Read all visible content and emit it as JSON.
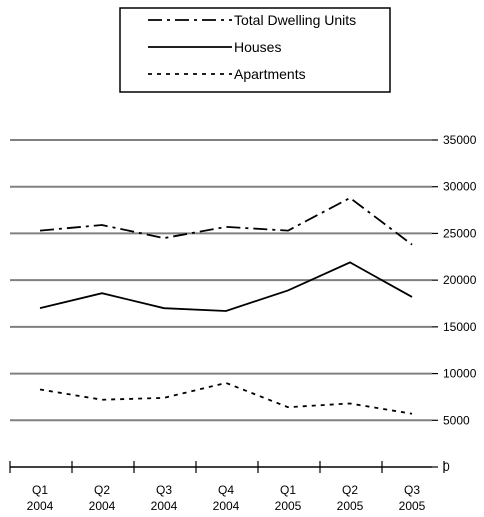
{
  "chart_data": {
    "type": "line",
    "title": "",
    "xlabel": "",
    "ylabel": "",
    "categories": [
      [
        "Q1",
        "2004"
      ],
      [
        "Q2",
        "2004"
      ],
      [
        "Q3",
        "2004"
      ],
      [
        "Q4",
        "2004"
      ],
      [
        "Q1",
        "2005"
      ],
      [
        "Q2",
        "2005"
      ],
      [
        "Q3",
        "2005"
      ]
    ],
    "y_axis_side": "right",
    "ylim": [
      0,
      35000
    ],
    "yticks": [
      0,
      5000,
      10000,
      15000,
      20000,
      25000,
      30000,
      35000
    ],
    "grid": true,
    "legend_position": "top",
    "series": [
      {
        "name": "Total Dwelling Units",
        "style": "dash-dot",
        "values": [
          25300,
          25900,
          24500,
          25700,
          25300,
          28800,
          23800
        ]
      },
      {
        "name": "Houses",
        "style": "solid",
        "values": [
          17000,
          18600,
          17000,
          16700,
          18900,
          21900,
          18200
        ]
      },
      {
        "name": "Apartments",
        "style": "dotted",
        "values": [
          8300,
          7200,
          7400,
          9000,
          6400,
          6800,
          5700
        ]
      }
    ],
    "colors": {
      "line": "#000000",
      "grid": "#808080"
    }
  }
}
